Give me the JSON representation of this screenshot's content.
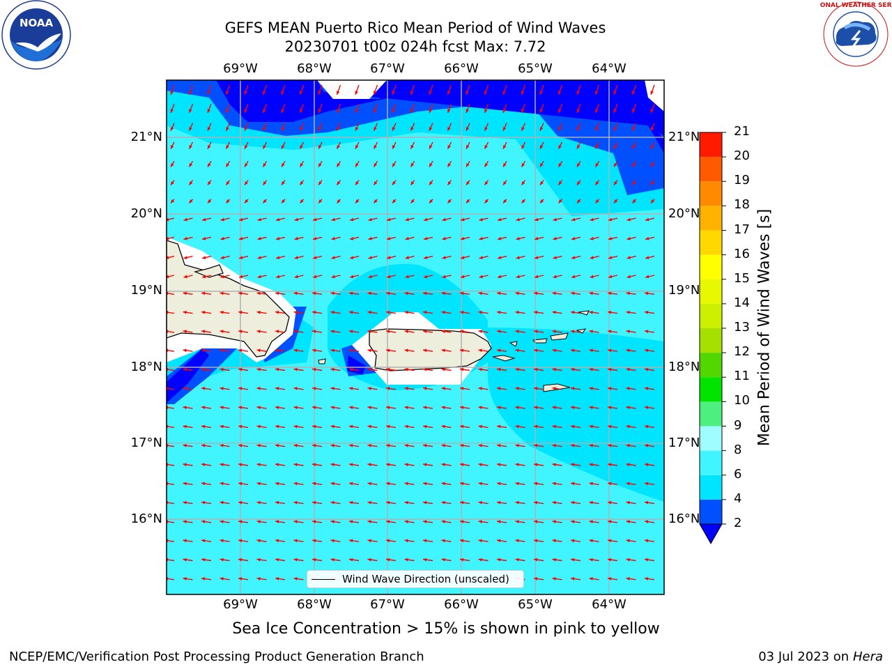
{
  "title_line1": "GEFS MEAN Puerto Rico Mean Period of Wind Waves",
  "title_line2": "20230701 t00z 024h fcst   Max: 7.72",
  "lon_labels": [
    "69°W",
    "68°W",
    "67°W",
    "66°W",
    "65°W",
    "64°W"
  ],
  "lat_labels": [
    "21°N",
    "20°N",
    "19°N",
    "18°N",
    "17°N",
    "16°N"
  ],
  "colorbar": {
    "title": "Mean Period of Wind Waves [s]",
    "ticks": [
      "2",
      "4",
      "6",
      "8",
      "9",
      "10",
      "11",
      "12",
      "13",
      "14",
      "15",
      "16",
      "17",
      "18",
      "19",
      "20",
      "21"
    ],
    "colors": [
      "#0050ff",
      "#00e5ff",
      "#40f5ff",
      "#9ffcff",
      "#4df07f",
      "#00e400",
      "#52d800",
      "#a6e000",
      "#ccf000",
      "#e8f800",
      "#ffff00",
      "#ffd800",
      "#ffb300",
      "#ff8a00",
      "#ff5a00",
      "#ff1a00"
    ],
    "extend_color": "#0000ff"
  },
  "legend_label": "Wind Wave Direction (unscaled)",
  "caption": "Sea Ice Concentration > 15% is shown in pink to yellow",
  "footer_left": "NCEP/EMC/Verification Post Processing Product Generation Branch",
  "footer_right_prefix": "03 Jul 2023 on ",
  "footer_right_host": "Hera",
  "logos": {
    "noaa": "NOAA",
    "nws": "NATIONAL WEATHER SERVICE"
  },
  "colors": {
    "arrow": "#ff0000",
    "land": "#eeeedd",
    "grid": "#b0b0b0"
  }
}
